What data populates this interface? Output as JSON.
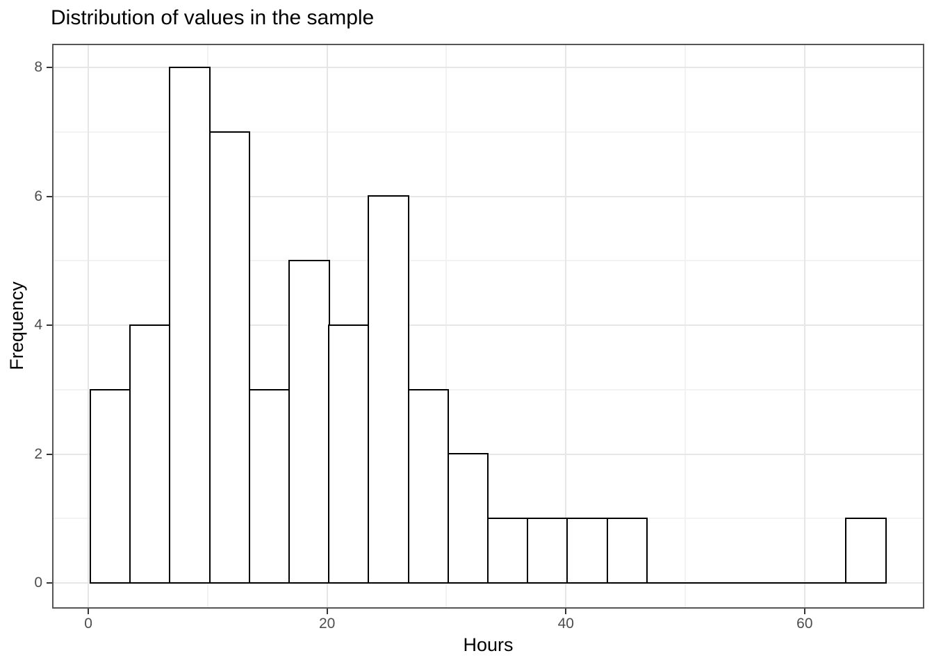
{
  "chart_data": {
    "type": "bar",
    "subtype": "histogram",
    "title": "Distribution of values in the sample",
    "xlabel": "Hours",
    "ylabel": "Frequency",
    "bin_start": 0.18,
    "bin_width": 3.33,
    "counts": [
      3,
      4,
      8,
      7,
      3,
      5,
      4,
      6,
      3,
      2,
      1,
      1,
      1,
      1,
      0,
      0,
      0,
      0,
      0,
      1
    ],
    "n_total": 50,
    "x_major_ticks": [
      0,
      20,
      40,
      60
    ],
    "x_minor_gridlines": [
      10,
      30,
      50
    ],
    "y_major_ticks": [
      0,
      2,
      4,
      6,
      8
    ],
    "y_minor_gridlines": [
      1,
      3,
      5,
      7
    ],
    "xlim": [
      -3.03,
      70.02
    ],
    "ylim": [
      -0.4,
      8.37
    ],
    "grid": true,
    "legend": false,
    "colors": {
      "bar_fill": "#ffffff",
      "bar_stroke": "#000000",
      "panel_background": "#ffffff",
      "panel_border": "#555555",
      "grid_major": "#e6e6e6",
      "grid_minor": "#f2f2f2",
      "tick_mark": "#333333",
      "tick_label": "#4d4d4d",
      "title_text": "#000000"
    }
  }
}
